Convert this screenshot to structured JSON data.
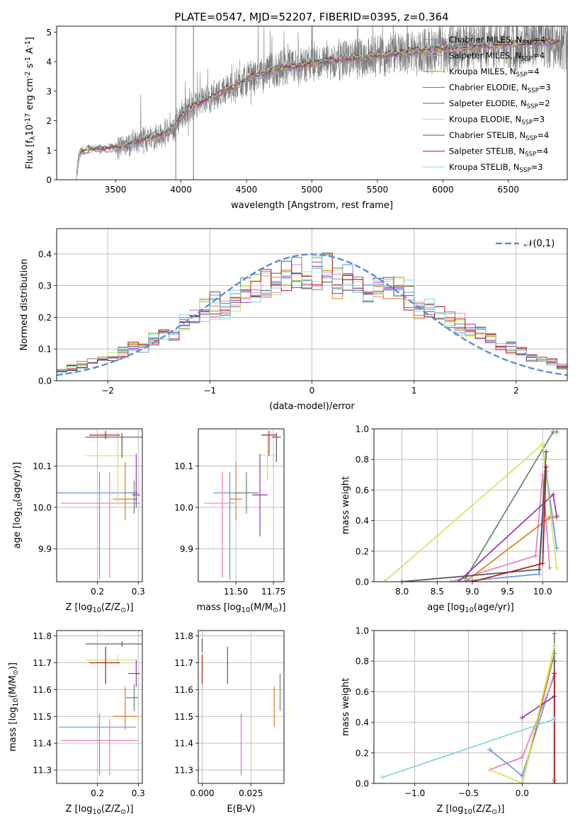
{
  "figure": {
    "title": "PLATE=0547, MJD=52207, FIBERID=0395, z=0.364"
  },
  "legend_entries": [
    {
      "name": "Chabrier MILES, N$_{SSP}$=4",
      "color": "#6495ed"
    },
    {
      "name": "Salpeter MILES, N$_{SSP}$=4",
      "color": "#e77fbf"
    },
    {
      "name": "Kroupa MILES, N$_{SSP}$=4",
      "color": "#e07b1a"
    },
    {
      "name": "Chabrier ELODIE, N$_{SSP}$=3",
      "color": "#5e8a6a"
    },
    {
      "name": "Salpeter ELODIE, N$_{SSP}$=2",
      "color": "#9b2fb6"
    },
    {
      "name": "Kroupa ELODIE, N$_{SSP}$=3",
      "color": "#cce65a"
    },
    {
      "name": "Chabrier STELIB, N$_{SSP}$=4",
      "color": "#555555"
    },
    {
      "name": "Salpeter STELIB, N$_{SSP}$=4",
      "color": "#b01c1c"
    },
    {
      "name": "Kroupa STELIB, N$_{SSP}$=3",
      "color": "#7fd8df"
    }
  ],
  "chart_data": [
    {
      "id": "spectrum",
      "type": "line",
      "title": "PLATE=0547, MJD=52207, FIBERID=0395, z=0.364",
      "xlabel": "wavelength [Angstrom, rest frame]",
      "ylabel": "Flux [f$_\\lambda$10$^{-17}$ erg cm$^{-2}$ s$^{-1}$ A$^{-1}$]",
      "xlim": [
        3050,
        6950
      ],
      "ylim": [
        0,
        5.2
      ],
      "xticks": [
        "3500",
        "4000",
        "4500",
        "5000",
        "5500",
        "6000",
        "6500"
      ],
      "yticks": [
        "0",
        "1",
        "2",
        "3",
        "4",
        "5"
      ],
      "grid": false,
      "legend_placement": "upper right",
      "continuum": {
        "x": [
          3200,
          3210,
          3230,
          3300,
          3400,
          3500,
          3600,
          3700,
          3800,
          3900,
          3950,
          4000,
          4100,
          4200,
          4300,
          4400,
          4500,
          4600,
          4700,
          4800,
          4900,
          5000,
          5100,
          5200,
          5300,
          5400,
          5500,
          5600,
          5700,
          5800,
          5900,
          6000,
          6100,
          6200,
          6300,
          6400,
          6500,
          6600,
          6700,
          6800
        ],
        "y": [
          0.0,
          0.6,
          0.95,
          1.05,
          1.05,
          1.1,
          1.2,
          1.35,
          1.5,
          1.6,
          1.75,
          2.2,
          2.5,
          2.75,
          2.95,
          3.15,
          3.4,
          3.55,
          3.7,
          3.8,
          3.85,
          3.95,
          4.0,
          4.05,
          4.1,
          4.15,
          4.2,
          4.25,
          4.3,
          4.35,
          4.4,
          4.45,
          4.45,
          4.5,
          4.55,
          4.55,
          4.6,
          4.6,
          4.62,
          4.65
        ]
      },
      "noisy_data_range": [
        3500,
        6950
      ],
      "vertical_spike_x": [
        4095,
        3960
      ]
    },
    {
      "id": "residuals",
      "type": "step-histogram",
      "xlabel": "(data-model)/error",
      "ylabel": "Normed distribution",
      "xlim": [
        -2.5,
        2.5
      ],
      "ylim": [
        0,
        0.48
      ],
      "xticks": [
        "−2",
        "−1",
        "0",
        "1",
        "2"
      ],
      "yticks": [
        "0.0",
        "0.1",
        "0.2",
        "0.3",
        "0.4"
      ],
      "grid": true,
      "legend_placement": "upper right",
      "reference_curve": {
        "name": "$\\mathcal{N}(0,1)$",
        "style": "dashed",
        "color": "#5b8dd6"
      },
      "bin_width": 0.1,
      "series_shape": [
        [
          0.95,
          0.9,
          1.05,
          1.1,
          1.0,
          0.92,
          1.12,
          1.0,
          0.88,
          1.05,
          0.98,
          0.93,
          1.1,
          1.02,
          0.97,
          1.15,
          0.9,
          1.05,
          0.95
        ],
        [
          1.05,
          1.12,
          0.92,
          0.98,
          1.08,
          1.0,
          0.9,
          1.13,
          1.02,
          0.95,
          1.1,
          0.88,
          0.97,
          1.06,
          1.15,
          0.92,
          1.0,
          0.94,
          1.08
        ]
      ]
    },
    {
      "id": "age-vs-Z",
      "type": "errorbar",
      "xlabel": "Z [log$_{10}$(Z/Z$_\\odot$)]",
      "ylabel": "age  [log$_{10}$(age/yr)]",
      "xlim": [
        0.1,
        0.31
      ],
      "ylim": [
        9.82,
        10.19
      ],
      "xticks": [
        "0.2",
        "0.3"
      ],
      "yticks": [
        "9.9",
        "10.0",
        "10.1"
      ],
      "grid": true,
      "points": [
        {
          "x": 0.205,
          "y": 10.035,
          "xerr": [
            0.11,
            0.09
          ],
          "yerr": [
            0.21,
            0.05
          ]
        },
        {
          "x": 0.23,
          "y": 10.01,
          "xerr": [
            0.12,
            0.075
          ],
          "yerr": [
            0.18,
            0.075
          ]
        },
        {
          "x": 0.268,
          "y": 10.02,
          "xerr": [
            0.03,
            0.03
          ],
          "yerr": [
            0.05,
            0.09
          ]
        },
        {
          "x": 0.29,
          "y": 10.035,
          "xerr": [
            0.01,
            0.01
          ],
          "yerr": [
            0.05,
            0.03
          ]
        },
        {
          "x": 0.295,
          "y": 10.03,
          "xerr": [
            0.01,
            0.01
          ],
          "yerr": [
            0.03,
            0.1
          ]
        },
        {
          "x": 0.25,
          "y": 10.125,
          "xerr": [
            0.08,
            0.05
          ],
          "yerr": [
            0.12,
            0.06
          ]
        },
        {
          "x": 0.26,
          "y": 10.17,
          "xerr": [
            0.09,
            0.05
          ],
          "yerr": [
            0.05,
            0.01
          ]
        },
        {
          "x": 0.22,
          "y": 10.175,
          "xerr": [
            0.04,
            0.035
          ],
          "yerr": [
            0.01,
            0.01
          ]
        }
      ]
    },
    {
      "id": "age-vs-mass",
      "type": "errorbar",
      "xlabel": "mass [log$_{10}$(M/M$_\\odot$)]",
      "xlim": [
        11.25,
        11.82
      ],
      "ylim": [
        9.82,
        10.19
      ],
      "xticks": [
        "11.50",
        "11.75"
      ],
      "yticks": [
        "9.9",
        "10.0",
        "10.1"
      ],
      "grid": true,
      "points": [
        {
          "x": 11.46,
          "y": 10.035,
          "xerr": [
            0.11,
            0.08
          ],
          "yerr": [
            0.21,
            0.05
          ]
        },
        {
          "x": 11.41,
          "y": 10.01,
          "xerr": [
            0.12,
            0.08
          ],
          "yerr": [
            0.18,
            0.075
          ]
        },
        {
          "x": 11.5,
          "y": 10.02,
          "xerr": [
            0.04,
            0.04
          ],
          "yerr": [
            0.05,
            0.09
          ]
        },
        {
          "x": 11.57,
          "y": 10.035,
          "xerr": [
            0.08,
            0.08
          ],
          "yerr": [
            0.05,
            0.05
          ]
        },
        {
          "x": 11.66,
          "y": 10.03,
          "xerr": [
            0.05,
            0.05
          ],
          "yerr": [
            0.1,
            0.1
          ]
        },
        {
          "x": 11.71,
          "y": 10.125,
          "xerr": [
            0.05,
            0.05
          ],
          "yerr": [
            0.06,
            0.05
          ]
        },
        {
          "x": 11.77,
          "y": 10.17,
          "xerr": [
            0.03,
            0.03
          ],
          "yerr": [
            0.06,
            0.01
          ]
        },
        {
          "x": 11.72,
          "y": 10.175,
          "xerr": [
            0.05,
            0.05
          ],
          "yerr": [
            0.05,
            0.01
          ]
        }
      ]
    },
    {
      "id": "weight-vs-age",
      "type": "line",
      "xlabel": "age  [log$_{10}$(age/yr)]",
      "ylabel": "mass weight",
      "xlim": [
        7.6,
        10.35
      ],
      "ylim": [
        0,
        1
      ],
      "xticks": [
        "8.0",
        "8.5",
        "9.0",
        "9.5",
        "10.0"
      ],
      "yticks": [
        "0.0",
        "0.2",
        "0.4",
        "0.6",
        "0.8",
        "1.0"
      ],
      "grid": true,
      "series": [
        {
          "x": [
            8.8,
            9.95,
            10.05,
            10.2
          ],
          "y": [
            0.0,
            0.05,
            0.72,
            0.22
          ]
        },
        {
          "x": [
            8.7,
            9.9,
            10.0,
            10.1
          ],
          "y": [
            0.0,
            0.17,
            0.7,
            0.09
          ]
        },
        {
          "x": [
            8.9,
            10.1,
            10.2
          ],
          "y": [
            0.0,
            0.42,
            0.42
          ]
        },
        {
          "x": [
            8.9,
            10.15,
            10.2
          ],
          "y": [
            0.02,
            0.98,
            0.98
          ]
        },
        {
          "x": [
            8.8,
            10.15,
            10.2
          ],
          "y": [
            0.0,
            0.57,
            0.43
          ]
        },
        {
          "x": [
            7.75,
            10.0,
            10.2
          ],
          "y": [
            0.0,
            0.9,
            0.09
          ]
        },
        {
          "x": [
            8.0,
            9.95,
            10.05
          ],
          "y": [
            0.0,
            0.08,
            0.85
          ]
        },
        {
          "x": [
            9.0,
            10.0,
            10.05
          ],
          "y": [
            0.0,
            0.12,
            0.75
          ]
        }
      ]
    },
    {
      "id": "mass-vs-Z",
      "type": "errorbar",
      "xlabel": "Z [log$_{10}$(Z/Z$_\\odot$)]",
      "ylabel": "mass [log$_{10}$(M/M$_\\odot$)]",
      "xlim": [
        0.1,
        0.31
      ],
      "ylim": [
        11.25,
        11.82
      ],
      "xticks": [
        "0.2",
        "0.3"
      ],
      "yticks": [
        "11.3",
        "11.4",
        "11.5",
        "11.6",
        "11.7",
        "11.8"
      ],
      "grid": true,
      "points": [
        {
          "x": 0.205,
          "y": 11.46,
          "xerr": [
            0.1,
            0.09
          ],
          "yerr": [
            0.18,
            0.05
          ]
        },
        {
          "x": 0.23,
          "y": 11.41,
          "xerr": [
            0.12,
            0.07
          ],
          "yerr": [
            0.13,
            0.08
          ]
        },
        {
          "x": 0.268,
          "y": 11.5,
          "xerr": [
            0.03,
            0.03
          ],
          "yerr": [
            0.05,
            0.11
          ]
        },
        {
          "x": 0.29,
          "y": 11.57,
          "xerr": [
            0.02,
            0.01
          ],
          "yerr": [
            0.05,
            0.05
          ]
        },
        {
          "x": 0.295,
          "y": 11.66,
          "xerr": [
            0.02,
            0.01
          ],
          "yerr": [
            0.05,
            0.05
          ]
        },
        {
          "x": 0.25,
          "y": 11.71,
          "xerr": [
            0.08,
            0.05
          ],
          "yerr": [
            0.02,
            0.02
          ]
        },
        {
          "x": 0.26,
          "y": 11.77,
          "xerr": [
            0.09,
            0.05
          ],
          "yerr": [
            0.01,
            0.01
          ]
        },
        {
          "x": 0.22,
          "y": 11.7,
          "xerr": [
            0.04,
            0.035
          ],
          "yerr": [
            0.08,
            0.06
          ]
        }
      ]
    },
    {
      "id": "mass-vs-EBV",
      "type": "errorbar",
      "xlabel": "E(B-V)",
      "xlim": [
        -0.002,
        0.042
      ],
      "ylim": [
        11.25,
        11.82
      ],
      "xticks": [
        "0.000",
        "0.025"
      ],
      "yticks": [
        "11.3",
        "11.4",
        "11.5",
        "11.6",
        "11.7",
        "11.8"
      ],
      "grid": true,
      "points": [
        {
          "x": 0.02,
          "y": 11.46,
          "yerr": [
            0.18,
            0.05
          ]
        },
        {
          "x": 0.02,
          "y": 11.41,
          "yerr": [
            0.13,
            0.08
          ]
        },
        {
          "x": 0.037,
          "y": 11.53,
          "yerr": [
            0.07,
            0.08
          ]
        },
        {
          "x": 0.04,
          "y": 11.59,
          "yerr": [
            0.07,
            0.07
          ]
        },
        {
          "x": 0.013,
          "y": 11.69,
          "yerr": [
            0.07,
            0.07
          ]
        },
        {
          "x": 0.0,
          "y": 11.71,
          "yerr": [
            0.02,
            0.02
          ]
        },
        {
          "x": 0.0,
          "y": 11.76,
          "yerr": [
            0.02,
            0.03
          ]
        },
        {
          "x": 0.0,
          "y": 11.67,
          "yerr": [
            0.05,
            0.06
          ]
        }
      ]
    },
    {
      "id": "weight-vs-Z",
      "type": "line",
      "xlabel": "Z [log$_{10}$(Z/Z$_\\odot$)]",
      "ylabel": "mass weight",
      "xlim": [
        -1.38,
        0.42
      ],
      "ylim": [
        0,
        1
      ],
      "xticks": [
        "−1.0",
        "−0.5",
        "0.0"
      ],
      "yticks": [
        "0.0",
        "0.2",
        "0.4",
        "0.6",
        "0.8",
        "1.0"
      ],
      "grid": true,
      "series": [
        {
          "x": [
            -0.3,
            0.0,
            0.3
          ],
          "y": [
            0.22,
            0.05,
            0.72
          ]
        },
        {
          "x": [
            -0.3,
            0.0,
            0.3
          ],
          "y": [
            0.09,
            0.17,
            0.7
          ]
        },
        {
          "x": [
            0.0,
            0.3
          ],
          "y": [
            0.0,
            0.85
          ]
        },
        {
          "x": [
            0.3,
            0.3
          ],
          "y": [
            0.02,
            0.98
          ]
        },
        {
          "x": [
            0.0,
            0.3
          ],
          "y": [
            0.43,
            0.57
          ]
        },
        {
          "x": [
            -0.3,
            0.0,
            0.3
          ],
          "y": [
            0.09,
            0.0,
            0.9
          ]
        },
        {
          "x": [
            0.3,
            0.3
          ],
          "y": [
            0.0,
            0.8
          ]
        },
        {
          "x": [
            0.3,
            0.3
          ],
          "y": [
            0.0,
            0.72
          ]
        },
        {
          "x": [
            -1.3,
            0.3
          ],
          "y": [
            0.04,
            0.42
          ]
        }
      ]
    }
  ]
}
